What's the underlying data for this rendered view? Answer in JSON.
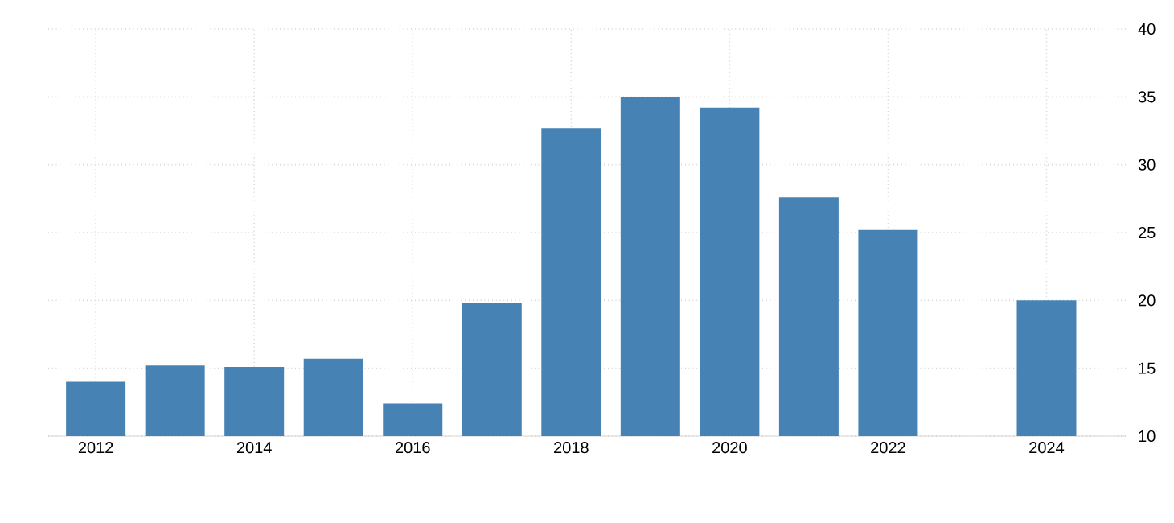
{
  "chart_data": {
    "type": "bar",
    "x": [
      2012,
      2013,
      2014,
      2015,
      2016,
      2017,
      2018,
      2019,
      2020,
      2021,
      2022,
      2023,
      2024
    ],
    "values": [
      14.0,
      15.2,
      15.1,
      15.7,
      12.4,
      19.8,
      32.7,
      35.0,
      34.2,
      27.6,
      25.2,
      null,
      20.0
    ],
    "color": "#4682b4",
    "xlim": [
      2011.4,
      2025.0
    ],
    "xticks": [
      2012,
      2014,
      2016,
      2018,
      2020,
      2022,
      2024
    ],
    "ylim": [
      10,
      40
    ],
    "yticks": [
      10,
      15,
      20,
      25,
      30,
      35,
      40
    ],
    "grid": true
  }
}
